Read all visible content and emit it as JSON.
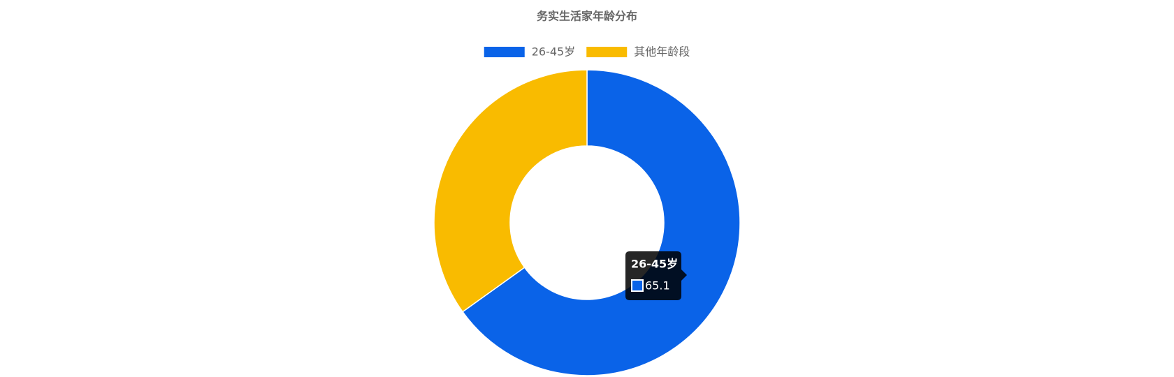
{
  "chart_data": {
    "type": "doughnut",
    "title": "务实生活家年龄分布",
    "categories": [
      "26-45岁",
      "其他年龄段"
    ],
    "values": [
      65.1,
      34.9
    ],
    "colors": [
      "#0a63e8",
      "#f9bb00"
    ]
  }
}
